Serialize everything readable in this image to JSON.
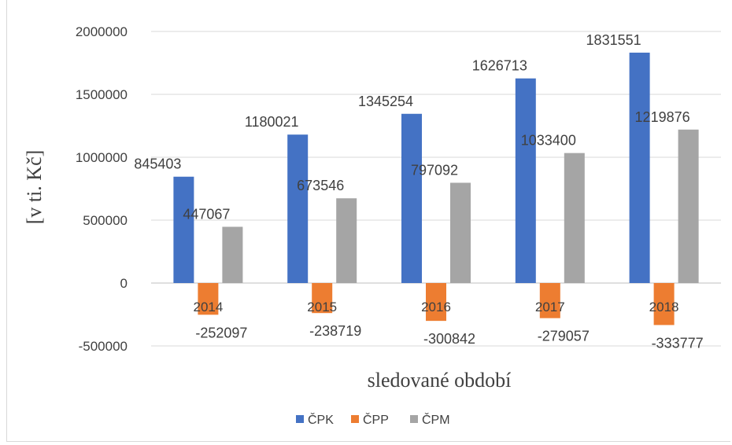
{
  "chart_data": {
    "type": "bar",
    "categories": [
      "2014",
      "2015",
      "2016",
      "2017",
      "2018"
    ],
    "series": [
      {
        "name": "ČPK",
        "color": "#4472c4",
        "values": [
          845403,
          1180021,
          1345254,
          1626713,
          1831551
        ]
      },
      {
        "name": "ČPP",
        "color": "#ed7d31",
        "values": [
          -252097,
          -238719,
          -300842,
          -279057,
          -333777
        ]
      },
      {
        "name": "ČPM",
        "color": "#a5a5a5",
        "values": [
          447067,
          673546,
          797092,
          1033400,
          1219876
        ]
      }
    ],
    "xlabel": "sledované období",
    "ylabel": "[v ti. Kč]",
    "ylim": [
      -500000,
      2000000
    ],
    "yticks": [
      -500000,
      0,
      500000,
      1000000,
      1500000,
      2000000
    ],
    "ytick_labels": [
      "-500000",
      "0",
      "500000",
      "1000000",
      "1500000",
      "2000000"
    ],
    "grid": true,
    "legend_position": "bottom"
  }
}
